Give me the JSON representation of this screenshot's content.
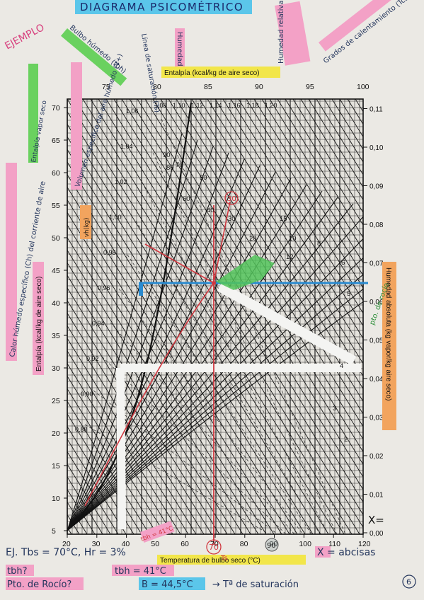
{
  "title": "DIAGRAMA PSICOMÉTRICO",
  "ejemplo_label": "EJEMPLO",
  "page_number": "6",
  "entalpia_top_label": "Entalpía (kcal/kg de aire seco)",
  "entalpia_left_label": "Entalpía (kcal/kg de aire seco)",
  "humedad_absoluta_label": "Humedad absoluta (kg vapor/kg aire seco)",
  "temperatura_label": "Temperatura de bulbo seco (°C)",
  "x_axis_ticks": [
    "20",
    "30",
    "40",
    "50",
    "60",
    "70",
    "80",
    "90",
    "100",
    "110",
    "120"
  ],
  "left_axis_ticks": [
    "5",
    "10",
    "15",
    "20",
    "25",
    "30",
    "35",
    "40",
    "45",
    "50",
    "55",
    "60",
    "65",
    "70"
  ],
  "right_axis_ticks": [
    "0,00",
    "0,01",
    "0,02",
    "0,03",
    "0,04",
    "0,05",
    "0,06",
    "0,07",
    "0,08",
    "0,09",
    "0,10",
    "0,11"
  ],
  "top_enthalpy_ticks": [
    "75",
    "80",
    "85",
    "90",
    "95",
    "100"
  ],
  "volume_ticks": [
    "1,06",
    "1,04",
    "1,02",
    "1,00",
    "0,98",
    "0,96",
    "0,94",
    "0,92",
    "0,90",
    "0,88"
  ],
  "volume_top_ticks": [
    "1,08",
    "1,10",
    "1,12",
    "1,14",
    "1,16",
    "1,18",
    "1,20"
  ],
  "rh_labels": [
    "90",
    "80",
    "70",
    "60",
    "50",
    "40",
    "30",
    "20",
    "15",
    "12",
    "10",
    "8",
    "6",
    "5",
    "4",
    "3",
    "2"
  ],
  "annotations": {
    "bulbo_humedo": "Bulbo húmedo (tbh)",
    "linea_saturacion": "Línea de saturación (Ts)",
    "humedad": "Humedad",
    "humedad_relativa": "Humedad relativa = Xs/X (Hr)",
    "grados_calentamiento": "Grados de calentamiento (Tcal)",
    "volumen_especifico": "Volumen específico del aire húmedo (V+)",
    "calor_humedo": "Calor húmedo específico (Ch) del corriente de aire",
    "entalpia_vapor_seco": "Entalpía vapor seco",
    "vh": "vh(kg)",
    "x_label": "X=",
    "punto_rocio_label": "pto. de rocío"
  },
  "bottom_notes": {
    "line1": "EJ. Tbs = 70°C, Hr = 3%",
    "x_abscisas": "X = abcisas",
    "tbh_question": "tbh?",
    "tbh_answer": "tbh = 41°C",
    "pto_rocio_question": "Pto. de Rocío?",
    "pto_rocio_answer": "B = 44,5°C",
    "desaturado": "→ Tª de saturación",
    "circle_70": "70",
    "circle_90": "90",
    "circle_30": "30",
    "ts": "Ts",
    "tbh_small": "tbh = 41°C"
  }
}
